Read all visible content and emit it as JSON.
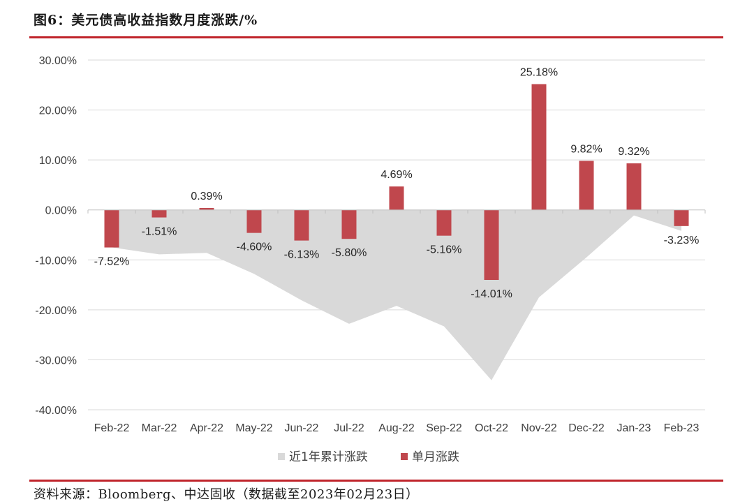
{
  "header": {
    "title": "图6：美元债高收益指数月度涨跌/%"
  },
  "footer": {
    "source": "资料来源：Bloomberg、中达固收（数据截至2023年02月23日）"
  },
  "colors": {
    "bar": "#c0474d",
    "area": "#d9d9d9",
    "grid": "#d9d9d9",
    "rule": "#c0242b"
  },
  "chart_data": {
    "type": "bar",
    "categories": [
      "Feb-22",
      "Mar-22",
      "Apr-22",
      "May-22",
      "Jun-22",
      "Jul-22",
      "Aug-22",
      "Sep-22",
      "Oct-22",
      "Nov-22",
      "Dec-22",
      "Jan-23",
      "Feb-23"
    ],
    "series": [
      {
        "name": "近1年累计涨跌",
        "type": "area",
        "values": [
          -7.5,
          -8.9,
          -8.6,
          -12.8,
          -18.1,
          -22.8,
          -19.2,
          -23.3,
          -34.1,
          -17.5,
          -9.5,
          -1.1,
          -4.2
        ]
      },
      {
        "name": "单月涨跌",
        "type": "bar",
        "values": [
          -7.52,
          -1.51,
          0.39,
          -4.6,
          -6.13,
          -5.8,
          4.69,
          -5.16,
          -14.01,
          25.18,
          9.82,
          9.32,
          -3.23
        ],
        "labels": [
          "-7.52%",
          "-1.51%",
          "0.39%",
          "-4.60%",
          "-6.13%",
          "-5.80%",
          "4.69%",
          "-5.16%",
          "-14.01%",
          "25.18%",
          "9.82%",
          "9.32%",
          "-3.23%"
        ]
      }
    ],
    "yticks": [
      "30.00%",
      "20.00%",
      "10.00%",
      "0.00%",
      "-10.00%",
      "-20.00%",
      "-30.00%",
      "-40.00%"
    ],
    "ylim": [
      -40,
      30
    ],
    "grid": true,
    "legend_position": "bottom-center"
  }
}
